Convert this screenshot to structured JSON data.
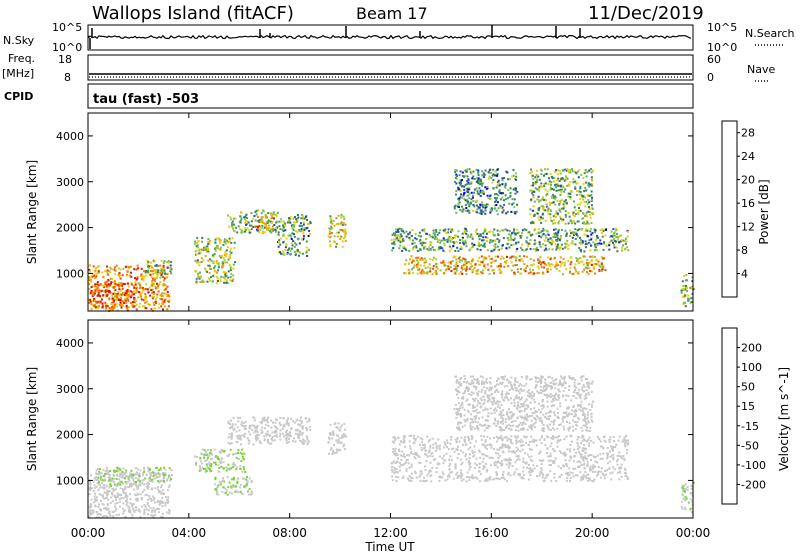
{
  "header": {
    "station": "Wallops Island (fitACF)",
    "beam": "Beam 17",
    "date": "11/Dec/2019"
  },
  "top_panels": {
    "nsky_label": "N.Sky",
    "nsky_ticks": [
      "10^5",
      "10^0"
    ],
    "nsearch_label": "N.Search",
    "nsearch_ticks": [
      "10^5",
      "10^0"
    ],
    "freq_label": "Freq.",
    "freq_unit": "[MHz]",
    "freq_ticks": [
      "18",
      "8"
    ],
    "nave_label": "Nave",
    "nave_ticks": [
      "60",
      "0"
    ],
    "cpid_label": "CPID",
    "cpid_value": "tau (fast) -503"
  },
  "chart_data": [
    {
      "type": "heatmap",
      "title": "",
      "xlabel": "Time UT",
      "ylabel": "Slant Range [km]",
      "x_ticks": [
        "00:00",
        "04:00",
        "08:00",
        "12:00",
        "16:00",
        "20:00",
        "00:00"
      ],
      "xlim_hours": [
        0,
        24
      ],
      "y_ticks": [
        1000,
        2000,
        3000,
        4000
      ],
      "ylim": [
        180,
        4500
      ],
      "colorbar": {
        "label": "Power [dB]",
        "ticks": [
          4,
          8,
          12,
          16,
          20,
          24,
          28
        ],
        "range": [
          0,
          30
        ],
        "colors": [
          "#0000ff",
          "#2448a8",
          "#347a5a",
          "#3f8f5a",
          "#57b06a",
          "#8cc63e",
          "#d9d31c",
          "#f2c40c",
          "#f5a000",
          "#f27a00",
          "#ea4a00",
          "#e01000"
        ]
      },
      "regions": [
        {
          "t": [
            0.0,
            3.2
          ],
          "r": [
            200,
            1200
          ],
          "level": 22
        },
        {
          "t": [
            0.0,
            1.8
          ],
          "r": [
            250,
            800
          ],
          "level": 27
        },
        {
          "t": [
            2.2,
            3.3
          ],
          "r": [
            1000,
            1300
          ],
          "level": 12
        },
        {
          "t": [
            4.2,
            5.8
          ],
          "r": [
            800,
            1800
          ],
          "level": 14
        },
        {
          "t": [
            5.5,
            7.5
          ],
          "r": [
            1900,
            2400
          ],
          "level": 12
        },
        {
          "t": [
            6.5,
            7.3
          ],
          "r": [
            2000,
            2300
          ],
          "level": 20
        },
        {
          "t": [
            7.5,
            8.8
          ],
          "r": [
            1400,
            2300
          ],
          "level": 10
        },
        {
          "t": [
            9.5,
            10.2
          ],
          "r": [
            1600,
            2300
          ],
          "level": 16
        },
        {
          "t": [
            12.0,
            21.4
          ],
          "r": [
            1500,
            2000
          ],
          "level": 10
        },
        {
          "t": [
            12.5,
            20.5
          ],
          "r": [
            1000,
            1400
          ],
          "level": 20
        },
        {
          "t": [
            14.5,
            17.0
          ],
          "r": [
            2300,
            3300
          ],
          "level": 8
        },
        {
          "t": [
            17.5,
            20.0
          ],
          "r": [
            2100,
            3300
          ],
          "level": 12
        },
        {
          "t": [
            23.5,
            24.0
          ],
          "r": [
            300,
            1000
          ],
          "level": 12
        }
      ]
    },
    {
      "type": "heatmap",
      "title": "",
      "xlabel": "Time UT",
      "ylabel": "Slant Range [km]",
      "x_ticks": [
        "00:00",
        "04:00",
        "08:00",
        "12:00",
        "16:00",
        "20:00",
        "00:00"
      ],
      "xlim_hours": [
        0,
        24
      ],
      "y_ticks": [
        1000,
        2000,
        3000,
        4000
      ],
      "ylim": [
        180,
        4500
      ],
      "colorbar": {
        "label": "Velocity [m s^-1]",
        "ticks": [
          "200",
          "100",
          "50",
          "15",
          "-15",
          "-50",
          "-100",
          "-200"
        ],
        "range": [
          -250,
          250
        ],
        "colors": [
          "#ff0000",
          "#f23a00",
          "#f57a00",
          "#f5a000",
          "#f2c86a",
          "#c8c8c8",
          "#c8c8c8",
          "#7ad23c",
          "#45b042",
          "#2e8a55",
          "#244a9a",
          "#0000ff"
        ]
      },
      "regions": [
        {
          "t": [
            0.0,
            3.2
          ],
          "r": [
            200,
            1200
          ],
          "level": 0
        },
        {
          "t": [
            0.3,
            2.6
          ],
          "r": [
            900,
            1300
          ],
          "level": 30
        },
        {
          "t": [
            2.4,
            3.3
          ],
          "r": [
            1000,
            1300
          ],
          "level": 40
        },
        {
          "t": [
            4.2,
            6.2
          ],
          "r": [
            1200,
            1700
          ],
          "level": 40
        },
        {
          "t": [
            5.0,
            6.5
          ],
          "r": [
            700,
            1100
          ],
          "level": 35
        },
        {
          "t": [
            5.5,
            8.8
          ],
          "r": [
            1800,
            2400
          ],
          "level": 0
        },
        {
          "t": [
            9.5,
            10.2
          ],
          "r": [
            1600,
            2300
          ],
          "level": 0
        },
        {
          "t": [
            12.0,
            21.4
          ],
          "r": [
            1000,
            2000
          ],
          "level": 0
        },
        {
          "t": [
            14.5,
            20.0
          ],
          "r": [
            2100,
            3300
          ],
          "level": 0
        },
        {
          "t": [
            23.5,
            24.0
          ],
          "r": [
            300,
            1000
          ],
          "level": 30
        }
      ]
    }
  ]
}
